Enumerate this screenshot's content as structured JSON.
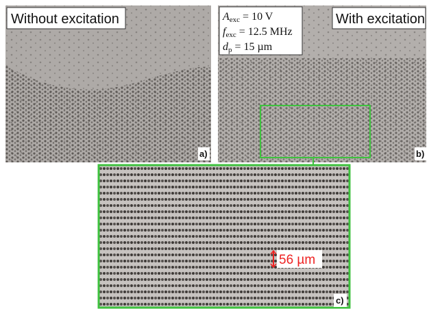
{
  "panels": [
    {
      "title": "Without excitation",
      "label": "a)"
    },
    {
      "title": "With excitation",
      "label": "b)",
      "parameters": [
        {
          "symbol": "A",
          "subscript": "exc",
          "value": "= 10 V"
        },
        {
          "symbol": "f",
          "subscript": "exc",
          "value": "= 12.5 MHz"
        },
        {
          "symbol": "d",
          "subscript": "p",
          "value": "= 15 µm"
        }
      ]
    },
    {
      "label": "c)",
      "scale_bar": "56 µm"
    }
  ]
}
